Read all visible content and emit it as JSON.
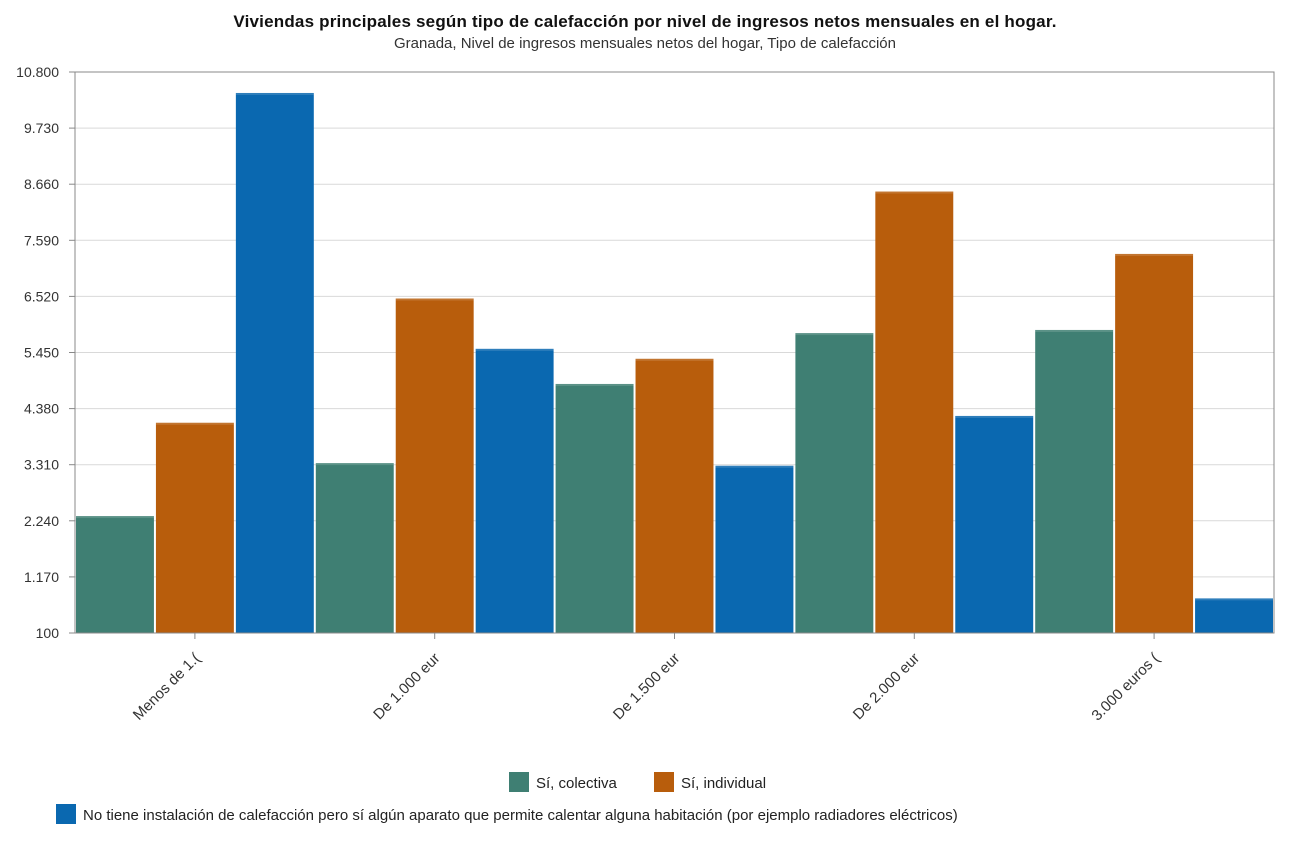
{
  "colors": {
    "colectiva": "#3f7f73",
    "individual": "#b85d0c",
    "ninguna_aparato": "#0a68b0",
    "grid": "#d9d9d9",
    "axis": "#888888"
  },
  "chart_data": {
    "type": "bar",
    "title": "Viviendas principales según tipo de calefacción por nivel de ingresos netos mensuales en el hogar.",
    "subtitle": "Granada, Nivel de ingresos mensuales netos del hogar, Tipo de calefacción",
    "categories": [
      "Menos de 1.(",
      "De 1.000 eur",
      "De 1.500 eur",
      "De 2.000 eur",
      "3.000 euros ("
    ],
    "series": [
      {
        "name": "Sí, colectiva",
        "color": "#3f7f73",
        "values": [
          2330,
          3340,
          4850,
          5820,
          5880
        ]
      },
      {
        "name": "Sí, individual",
        "color": "#b85d0c",
        "values": [
          4110,
          6480,
          5330,
          8520,
          7330
        ]
      },
      {
        "name": "No tiene instalación de calefacción pero sí algún aparato que permite calentar alguna habitación (por ejemplo radiadores eléctricos)",
        "color": "#0a68b0",
        "values": [
          10400,
          5520,
          3290,
          4240,
          760
        ]
      }
    ],
    "yticks": [
      "100",
      "1.170",
      "2.240",
      "3.310",
      "4.380",
      "5.450",
      "6.520",
      "7.590",
      "8.660",
      "9.730",
      "10.800"
    ],
    "ylim": [
      100,
      10800
    ],
    "grid": true,
    "legend_position": "bottom"
  }
}
